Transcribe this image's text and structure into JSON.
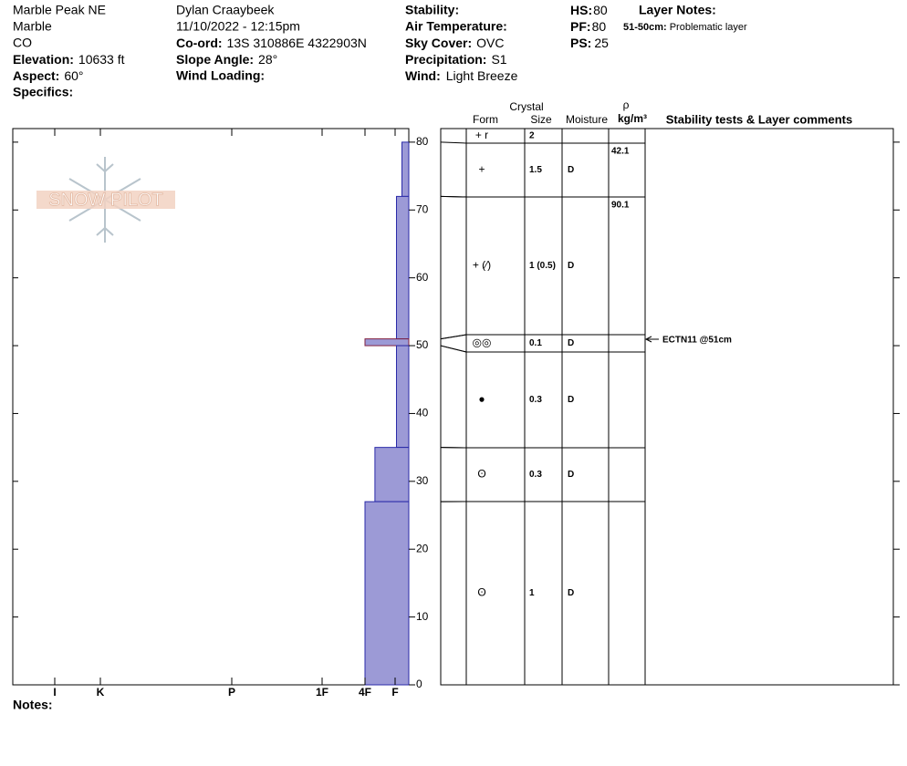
{
  "site": {
    "name": "Marble Peak NE",
    "range": "Marble",
    "state": "CO",
    "elevation": {
      "label": "Elevation:",
      "value": "10633 ft"
    },
    "aspect": {
      "label": "Aspect:",
      "value": "60°"
    },
    "specifics": {
      "label": "Specifics:"
    }
  },
  "observer": {
    "name": "Dylan Craaybeek",
    "datetime": "11/10/2022 - 12:15pm",
    "coord": {
      "label": "Co-ord:",
      "value": "13S 310886E 4322903N"
    },
    "slope": {
      "label": "Slope Angle:",
      "value": "28°"
    },
    "wind_loading": {
      "label": "Wind Loading:"
    }
  },
  "conditions": {
    "stability": {
      "label": "Stability:"
    },
    "air_temperature": {
      "label": "Air Temperature:"
    },
    "sky_cover": {
      "label": "Sky Cover:",
      "value": "OVC"
    },
    "precipitation": {
      "label": "Precipitation:",
      "value": "S1"
    },
    "wind": {
      "label": "Wind:",
      "value": "Light Breeze"
    }
  },
  "depths": {
    "hs": {
      "label": "HS:",
      "value": "80"
    },
    "pf": {
      "label": "PF:",
      "value": "80"
    },
    "ps": {
      "label": "PS:",
      "value": "25"
    }
  },
  "layer_notes": {
    "title": "Layer Notes:",
    "items": [
      {
        "range": "51-50cm:",
        "text": "Problematic layer"
      }
    ]
  },
  "logo": "SNOW PILOT",
  "profile": {
    "ylim": [
      0,
      82
    ],
    "yticks": [
      0,
      10,
      20,
      30,
      40,
      50,
      60,
      70,
      80
    ],
    "xticks": [
      {
        "value": 1,
        "label": "F"
      },
      {
        "value": 2,
        "label": "4F"
      },
      {
        "value": 3,
        "label": "1F"
      },
      {
        "value": 4,
        "label": "P"
      },
      {
        "value": 5,
        "label": "K"
      },
      {
        "value": 6,
        "label": "I"
      }
    ],
    "color": "#9c9ad6",
    "layers": [
      {
        "top": 80,
        "bottom": 72,
        "hardness": 0.5
      },
      {
        "top": 72,
        "bottom": 51,
        "hardness": 0.9
      },
      {
        "top": 51,
        "bottom": 50,
        "hardness": 2
      },
      {
        "top": 50,
        "bottom": 35,
        "hardness": 0.9
      },
      {
        "top": 35,
        "bottom": 27,
        "hardness": 1.67
      },
      {
        "top": 27,
        "bottom": 0,
        "hardness": 2
      }
    ]
  },
  "table": {
    "headers": {
      "crystal": "Crystal",
      "form": "Form",
      "size": "Size",
      "moisture": "Moisture",
      "rho": "ρ",
      "density": "kg/m³",
      "comments": "Stability tests & Layer comments"
    },
    "rows": [
      {
        "form": "+ r",
        "size": "2"
      },
      {
        "form": "+",
        "size": "1.5",
        "moisture": "D",
        "density": "42.1"
      },
      {
        "form": "+ (⁄)",
        "size": "1 (0.5)",
        "moisture": "D",
        "density": "90.1"
      },
      {
        "form": "◎◎",
        "size": "0.1",
        "moisture": "D"
      },
      {
        "form": "●",
        "size": "0.3",
        "moisture": "D"
      },
      {
        "form": "ʘ",
        "size": "0.3",
        "moisture": "D"
      },
      {
        "form": "ʘ",
        "size": "1",
        "moisture": "D"
      }
    ],
    "tests": [
      {
        "text": "ECTN11 @51cm"
      }
    ]
  },
  "notes": {
    "label": "Notes:"
  }
}
